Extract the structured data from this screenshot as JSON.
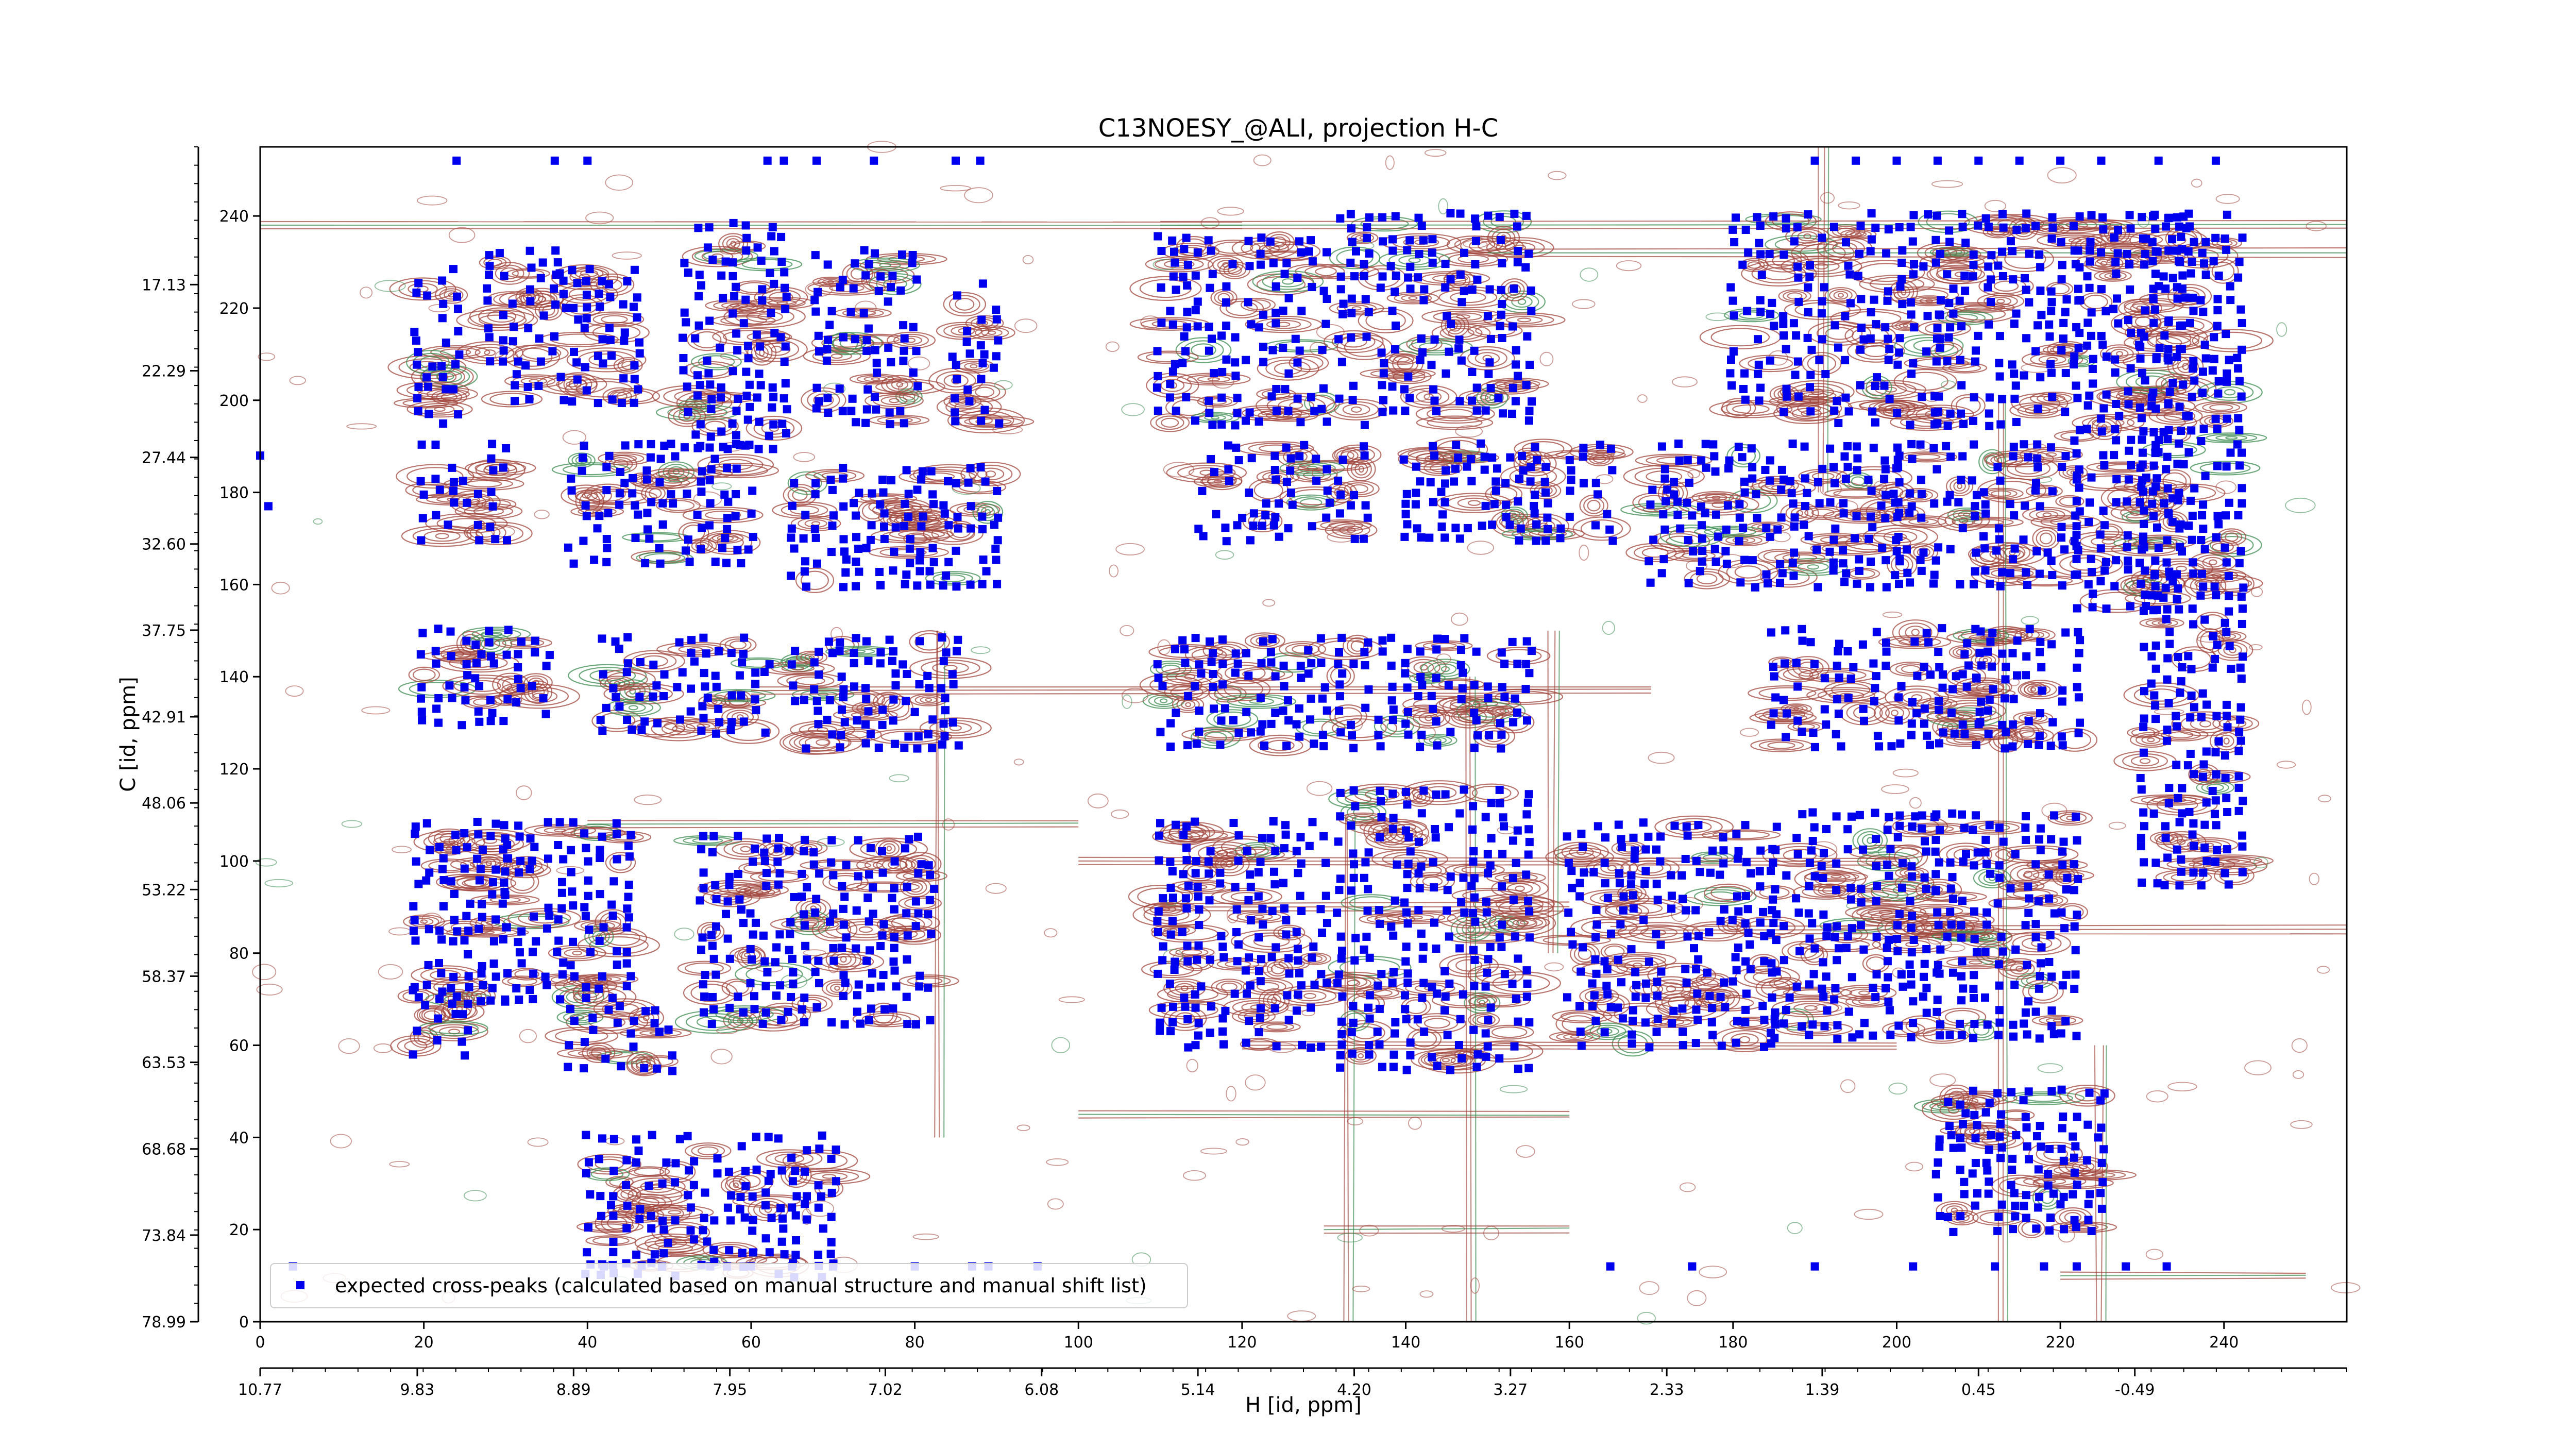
{
  "chart_data": {
    "type": "scatter",
    "title": "C13NOESY_@ALI, projection H-C",
    "xlabel": "H [id, ppm]",
    "ylabel": "C [id, ppm]",
    "xlim": [
      0,
      255
    ],
    "ylim": [
      0,
      255
    ],
    "x_index_ticks": [
      0,
      20,
      40,
      60,
      80,
      100,
      120,
      140,
      160,
      180,
      200,
      220,
      240
    ],
    "y_index_ticks": [
      0,
      20,
      40,
      60,
      80,
      100,
      120,
      140,
      160,
      180,
      200,
      220,
      240
    ],
    "x_ppm_ticks": [
      {
        "index": 0,
        "label": "10.77"
      },
      {
        "index": 19.2,
        "label": "9.83"
      },
      {
        "index": 38.3,
        "label": "8.89"
      },
      {
        "index": 57.4,
        "label": "7.95"
      },
      {
        "index": 76.4,
        "label": "7.02"
      },
      {
        "index": 95.5,
        "label": "6.08"
      },
      {
        "index": 114.6,
        "label": "5.14"
      },
      {
        "index": 133.7,
        "label": "4.20"
      },
      {
        "index": 152.8,
        "label": "3.27"
      },
      {
        "index": 171.9,
        "label": "2.33"
      },
      {
        "index": 190.9,
        "label": "1.39"
      },
      {
        "index": 210.0,
        "label": "0.45"
      },
      {
        "index": 229.1,
        "label": "-0.49"
      }
    ],
    "y_ppm_ticks": [
      {
        "index": 0,
        "label": "78.99"
      },
      {
        "index": 18.8,
        "label": "73.84"
      },
      {
        "index": 37.5,
        "label": "68.68"
      },
      {
        "index": 56.3,
        "label": "63.53"
      },
      {
        "index": 75.0,
        "label": "58.37"
      },
      {
        "index": 93.8,
        "label": "53.22"
      },
      {
        "index": 112.6,
        "label": "48.06"
      },
      {
        "index": 131.3,
        "label": "42.91"
      },
      {
        "index": 150.1,
        "label": "37.75"
      },
      {
        "index": 168.8,
        "label": "32.60"
      },
      {
        "index": 187.6,
        "label": "27.44"
      },
      {
        "index": 206.4,
        "label": "22.29"
      },
      {
        "index": 225.1,
        "label": "17.13"
      }
    ],
    "legend": {
      "label": "expected cross-peaks (calculated based on manual structure and manual shift list)",
      "placement": "lower-left"
    },
    "colors": {
      "marker": "#0000ee",
      "positive_contour": "#a0463c",
      "negative_contour": "#3c8c50"
    },
    "peak_clusters": [
      {
        "x": [
          19,
          24
        ],
        "y": [
          195,
          228
        ]
      },
      {
        "x": [
          28,
          36
        ],
        "y": [
          200,
          232
        ]
      },
      {
        "x": [
          37,
          46
        ],
        "y": [
          200,
          228
        ]
      },
      {
        "x": [
          52,
          64
        ],
        "y": [
          190,
          238
        ]
      },
      {
        "x": [
          68,
          80
        ],
        "y": [
          195,
          232
        ]
      },
      {
        "x": [
          85,
          90
        ],
        "y": [
          195,
          225
        ]
      },
      {
        "x": [
          20,
          30
        ],
        "y": [
          170,
          190
        ]
      },
      {
        "x": [
          38,
          60
        ],
        "y": [
          165,
          190
        ]
      },
      {
        "x": [
          65,
          90
        ],
        "y": [
          160,
          185
        ]
      },
      {
        "x": [
          20,
          35
        ],
        "y": [
          130,
          150
        ]
      },
      {
        "x": [
          42,
          62
        ],
        "y": [
          128,
          148
        ]
      },
      {
        "x": [
          65,
          85
        ],
        "y": [
          125,
          148
        ]
      },
      {
        "x": [
          19,
          30
        ],
        "y": [
          70,
          108
        ]
      },
      {
        "x": [
          30,
          45
        ],
        "y": [
          70,
          108
        ]
      },
      {
        "x": [
          54,
          68
        ],
        "y": [
          65,
          105
        ]
      },
      {
        "x": [
          70,
          82
        ],
        "y": [
          65,
          105
        ]
      },
      {
        "x": [
          19,
          25
        ],
        "y": [
          58,
          72
        ]
      },
      {
        "x": [
          38,
          50
        ],
        "y": [
          55,
          68
        ]
      },
      {
        "x": [
          110,
          130
        ],
        "y": [
          195,
          235
        ]
      },
      {
        "x": [
          132,
          155
        ],
        "y": [
          195,
          240
        ]
      },
      {
        "x": [
          115,
          135
        ],
        "y": [
          170,
          190
        ]
      },
      {
        "x": [
          140,
          165
        ],
        "y": [
          170,
          190
        ]
      },
      {
        "x": [
          110,
          130
        ],
        "y": [
          125,
          148
        ]
      },
      {
        "x": [
          132,
          155
        ],
        "y": [
          125,
          148
        ]
      },
      {
        "x": [
          110,
          130
        ],
        "y": [
          60,
          108
        ]
      },
      {
        "x": [
          132,
          155
        ],
        "y": [
          55,
          115
        ]
      },
      {
        "x": [
          160,
          185
        ],
        "y": [
          60,
          108
        ]
      },
      {
        "x": [
          185,
          205
        ],
        "y": [
          62,
          110
        ]
      },
      {
        "x": [
          205,
          222
        ],
        "y": [
          62,
          110
        ]
      },
      {
        "x": [
          180,
          205
        ],
        "y": [
          195,
          240
        ]
      },
      {
        "x": [
          205,
          222
        ],
        "y": [
          195,
          240
        ]
      },
      {
        "x": [
          170,
          200
        ],
        "y": [
          160,
          190
        ]
      },
      {
        "x": [
          200,
          222
        ],
        "y": [
          160,
          190
        ]
      },
      {
        "x": [
          185,
          210
        ],
        "y": [
          125,
          150
        ]
      },
      {
        "x": [
          210,
          222
        ],
        "y": [
          125,
          150
        ]
      },
      {
        "x": [
          222,
          235
        ],
        "y": [
          155,
          240
        ]
      },
      {
        "x": [
          230,
          242
        ],
        "y": [
          95,
          240
        ]
      },
      {
        "x": [
          205,
          225
        ],
        "y": [
          20,
          50
        ]
      },
      {
        "x": [
          40,
          70
        ],
        "y": [
          10,
          40
        ]
      }
    ]
  }
}
